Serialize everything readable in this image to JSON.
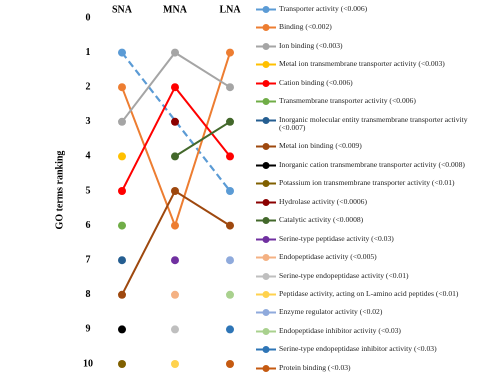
{
  "chart_data": {
    "type": "line",
    "y_label": "GO terms ranking",
    "categories": [
      "SNA",
      "MNA",
      "LNA"
    ],
    "ylim": [
      0,
      10
    ],
    "yticks": [
      0,
      1,
      2,
      3,
      4,
      5,
      6,
      7,
      8,
      9,
      10
    ],
    "y_inverted": true,
    "series": [
      {
        "name": "Transporter activity (<0.006)",
        "color": "#5b9bd5",
        "dashed": true,
        "values": [
          1,
          null,
          5
        ]
      },
      {
        "name": "Binding (<0.002)",
        "color": "#ed7d31",
        "values": [
          2,
          6,
          1
        ]
      },
      {
        "name": "Ion binding (<0.003)",
        "color": "#a5a5a5",
        "values": [
          3,
          1,
          2
        ]
      },
      {
        "name": "Metal ion transmembrane transporter activity (<0.003)",
        "color": "#ffc000",
        "values": [
          4,
          null,
          null
        ]
      },
      {
        "name": "Cation binding (<0.006)",
        "color": "#ff0000",
        "values": [
          5,
          2,
          4
        ]
      },
      {
        "name": "Transmembrane transporter activity (<0.006)",
        "color": "#70ad47",
        "values": [
          6,
          null,
          null
        ]
      },
      {
        "name": "Inorganic molecular entity transmembrane transporter activity (<0.007)",
        "color": "#255e91",
        "values": [
          7,
          null,
          null
        ]
      },
      {
        "name": "Metal ion binding (<0.009)",
        "color": "#9e480e",
        "values": [
          8,
          5,
          6
        ]
      },
      {
        "name": "Inorganic cation transmembrane transporter activity (<0.008)",
        "color": "#000000",
        "values": [
          9,
          null,
          null
        ]
      },
      {
        "name": "Potassium ion transmembrane transporter activity (<0.01)",
        "color": "#806000",
        "values": [
          10,
          null,
          null
        ]
      },
      {
        "name": "Hydrolase activity (<0.0006)",
        "color": "#8b0000",
        "values": [
          null,
          3,
          null
        ]
      },
      {
        "name": "Catalytic activity (<0.0008)",
        "color": "#43682b",
        "values": [
          null,
          4,
          3
        ]
      },
      {
        "name": "Serine-type peptidase activity (<0.03)",
        "color": "#7030a0",
        "values": [
          null,
          7,
          null
        ]
      },
      {
        "name": "Endopeptidase activity (<0.005)",
        "color": "#f4b183",
        "values": [
          null,
          8,
          null
        ]
      },
      {
        "name": "Serine-type endopeptidase activity (<0.01)",
        "color": "#bfbfbf",
        "values": [
          null,
          9,
          null
        ]
      },
      {
        "name": "Peptidase activity, acting on L-amino acid peptides (<0.01)",
        "color": "#ffd24d",
        "values": [
          null,
          10,
          null
        ]
      },
      {
        "name": "Enzyme regulator activity (<0.02)",
        "color": "#8faadc",
        "values": [
          null,
          null,
          7
        ]
      },
      {
        "name": "Endopeptidase inhibitor activity (<0.03)",
        "color": "#a9d18e",
        "values": [
          null,
          null,
          8
        ]
      },
      {
        "name": "Serine-type endopeptidase inhibitor activity (<0.03)",
        "color": "#2e75b6",
        "values": [
          null,
          null,
          9
        ]
      },
      {
        "name": "Protein binding (<0.03)",
        "color": "#c55a11",
        "values": [
          null,
          null,
          10
        ]
      }
    ]
  }
}
